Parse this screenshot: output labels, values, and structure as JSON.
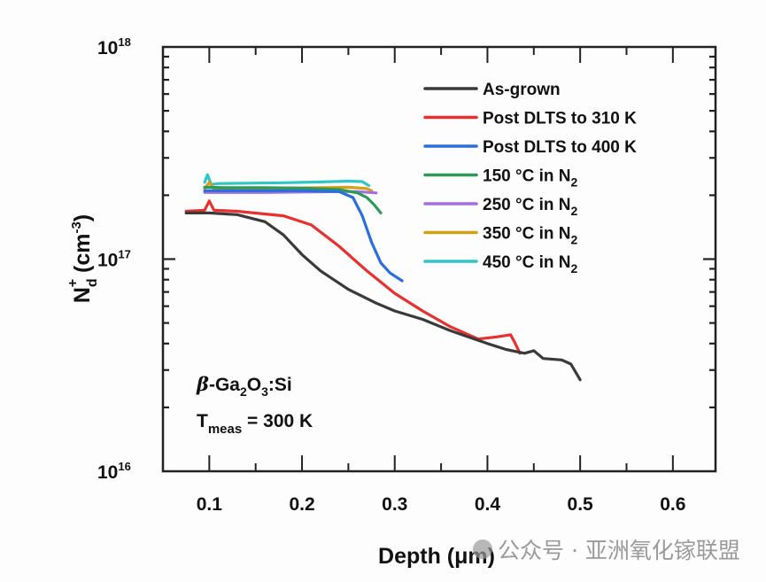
{
  "chart_data": {
    "type": "line",
    "title": "",
    "xlabel": "Depth (μm)",
    "ylabel_main": "N",
    "ylabel_sub": "d",
    "ylabel_sup": "+",
    "ylabel_unit": " (cm",
    "ylabel_unit_sup": "-3",
    "ylabel_unit_end": ")",
    "xlim": [
      0.05,
      0.646
    ],
    "ylim": [
      1e+16,
      1e+18
    ],
    "yscale": "log",
    "grid": false,
    "legend_position": "top-right",
    "x_ticks": [
      {
        "value": 0.1,
        "label": "0.1"
      },
      {
        "value": 0.2,
        "label": "0.2"
      },
      {
        "value": 0.3,
        "label": "0.3"
      },
      {
        "value": 0.4,
        "label": "0.4"
      },
      {
        "value": 0.5,
        "label": "0.5"
      },
      {
        "value": 0.6,
        "label": "0.6"
      }
    ],
    "y_ticks": [
      {
        "value": 1e+16,
        "base": "10",
        "exp": "16"
      },
      {
        "value": 1e+17,
        "base": "10",
        "exp": "17"
      },
      {
        "value": 1e+18,
        "base": "10",
        "exp": "18"
      }
    ],
    "series": [
      {
        "name": "As-grown",
        "color": "#3a3a3a",
        "x": [
          0.075,
          0.1,
          0.13,
          0.16,
          0.18,
          0.2,
          0.22,
          0.25,
          0.28,
          0.3,
          0.33,
          0.36,
          0.4,
          0.42,
          0.44,
          0.45,
          0.46,
          0.48,
          0.49,
          0.5
        ],
        "y": [
          1.65e+17,
          1.65e+17,
          1.62e+17,
          1.5e+17,
          1.3e+17,
          1.05e+17,
          8.8e+16,
          7.2e+16,
          6.2e+16,
          5.7e+16,
          5.2e+16,
          4.6e+16,
          4e+16,
          3.75e+16,
          3.6e+16,
          3.7e+16,
          3.4e+16,
          3.35e+16,
          3.2e+16,
          2.7e+16
        ]
      },
      {
        "name": "Post DLTS to 310 K",
        "color": "#e8302e",
        "x": [
          0.075,
          0.095,
          0.1,
          0.105,
          0.13,
          0.18,
          0.21,
          0.24,
          0.27,
          0.3,
          0.33,
          0.36,
          0.39,
          0.41,
          0.425,
          0.43,
          0.435
        ],
        "y": [
          1.68e+17,
          1.7e+17,
          1.88e+17,
          1.7e+17,
          1.68e+17,
          1.6e+17,
          1.45e+17,
          1.15e+17,
          8.8e+16,
          6.9e+16,
          5.7e+16,
          4.8e+16,
          4.2e+16,
          4.3e+16,
          4.4e+16,
          4e+16,
          3.6e+16
        ]
      },
      {
        "name": "Post DLTS to 400 K",
        "color": "#2a6fdc",
        "x": [
          0.095,
          0.12,
          0.16,
          0.2,
          0.24,
          0.255,
          0.265,
          0.275,
          0.285,
          0.295,
          0.308
        ],
        "y": [
          2.1e+17,
          2.1e+17,
          2.1e+17,
          2.1e+17,
          2.08e+17,
          1.95e+17,
          1.6e+17,
          1.2e+17,
          9.6e+16,
          8.6e+16,
          7.9e+16
        ]
      },
      {
        "name": "150 °C in N2",
        "color": "#2e9a58",
        "x": [
          0.095,
          0.12,
          0.16,
          0.2,
          0.24,
          0.26,
          0.27,
          0.278,
          0.285
        ],
        "y": [
          2.18e+17,
          2.17e+17,
          2.17e+17,
          2.16e+17,
          2.13e+17,
          2.05e+17,
          1.95e+17,
          1.8e+17,
          1.65e+17
        ]
      },
      {
        "name": "250 °C in N2",
        "color": "#a36ee0",
        "x": [
          0.095,
          0.12,
          0.16,
          0.2,
          0.24,
          0.26,
          0.28
        ],
        "y": [
          2.06e+17,
          2.06e+17,
          2.06e+17,
          2.07e+17,
          2.08e+17,
          2.08e+17,
          2.05e+17
        ]
      },
      {
        "name": "350 °C in N2",
        "color": "#d4a017",
        "x": [
          0.095,
          0.1,
          0.105,
          0.14,
          0.18,
          0.22,
          0.25,
          0.27,
          0.275
        ],
        "y": [
          2.15e+17,
          2.3e+17,
          2.15e+17,
          2.15e+17,
          2.16e+17,
          2.17e+17,
          2.18e+17,
          2.15e+17,
          2.1e+17
        ]
      },
      {
        "name": "450 °C in N2",
        "color": "#2ec6c6",
        "x": [
          0.095,
          0.098,
          0.102,
          0.11,
          0.14,
          0.18,
          0.22,
          0.25,
          0.265,
          0.272
        ],
        "y": [
          2.3e+17,
          2.5e+17,
          2.25e+17,
          2.27e+17,
          2.28e+17,
          2.29e+17,
          2.31e+17,
          2.33e+17,
          2.32e+17,
          2.22e+17
        ]
      }
    ],
    "legend": [
      {
        "label": "As-grown",
        "sub": ""
      },
      {
        "label": "Post DLTS to 310 K",
        "sub": ""
      },
      {
        "label": "Post DLTS to 400 K",
        "sub": ""
      },
      {
        "label": "150 °C in N",
        "sub": "2"
      },
      {
        "label": "250 °C in N",
        "sub": "2"
      },
      {
        "label": "350 °C in N",
        "sub": "2"
      },
      {
        "label": "450 °C in N",
        "sub": "2"
      }
    ],
    "annotations": {
      "material_beta": "β",
      "material_pre": "-Ga",
      "material_sub1": "2",
      "material_mid": "O",
      "material_sub2": "3",
      "material_post": ":Si",
      "tmeas_T": "T",
      "tmeas_sub": "meas",
      "tmeas_rest": " = 300 K"
    }
  },
  "watermark": "公众号 · 亚洲氧化镓联盟"
}
